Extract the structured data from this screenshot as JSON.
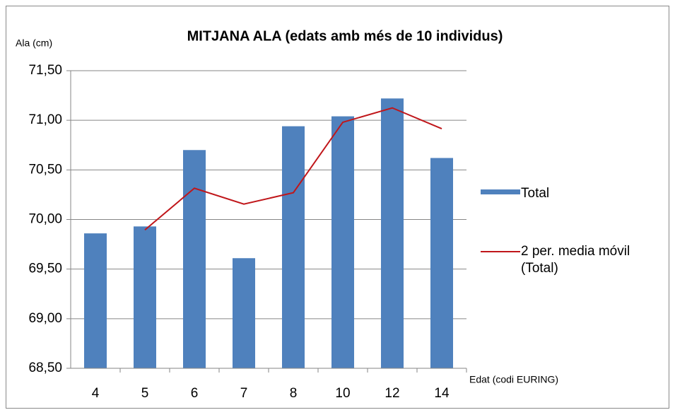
{
  "chart_data": {
    "type": "bar",
    "title": "MITJANA ALA (edats amb més de 10 individus)",
    "y_label": "Ala (cm)",
    "x_label": "Edat (codi EURING)",
    "categories": [
      "4",
      "5",
      "6",
      "7",
      "8",
      "10",
      "12",
      "14"
    ],
    "series": [
      {
        "name": "Total",
        "type": "bar",
        "color": "#4f81bd",
        "values": [
          69.86,
          69.93,
          70.7,
          69.61,
          70.94,
          71.04,
          71.22,
          70.62
        ]
      },
      {
        "name": "2 per. media móvil (Total)",
        "type": "line",
        "color": "#c0161a",
        "values": [
          null,
          69.895,
          70.315,
          70.155,
          70.27,
          70.98,
          71.125,
          70.915
        ]
      }
    ],
    "ylim": [
      68.5,
      71.5
    ],
    "yticks": [
      {
        "value": 68.5,
        "label": "68,50"
      },
      {
        "value": 69,
        "label": "69,00"
      },
      {
        "value": 69.5,
        "label": "69,50"
      },
      {
        "value": 70,
        "label": "70,00"
      },
      {
        "value": 70.5,
        "label": "70,50"
      },
      {
        "value": 71,
        "label": "71,00"
      },
      {
        "value": 71.5,
        "label": "71,50"
      }
    ],
    "grid": true,
    "legend": "right"
  }
}
